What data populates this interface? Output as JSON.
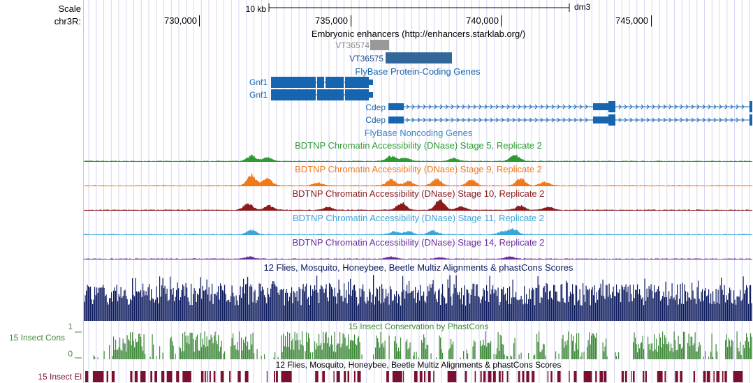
{
  "ruler": {
    "scale_label": "Scale",
    "chrom_label": "chr3R:",
    "scale_bar_label": "10 kb",
    "assembly": "dm3",
    "positions": [
      "730,000",
      "735,000",
      "740,000",
      "745,000"
    ]
  },
  "tracks": {
    "enhancers": {
      "title": "Embryonic enhancers (http://enhancers.starklab.org/)",
      "items": [
        {
          "label": "VT36574",
          "color": "#999999",
          "label_color": "#8a8a8a"
        },
        {
          "label": "VT36575",
          "color": "#336699",
          "label_color": "#1f4e8c"
        }
      ]
    },
    "flybase_coding": {
      "title": "FlyBase Protein-Coding Genes",
      "color": "#1565b0",
      "genes": [
        {
          "label": "Gnf1"
        },
        {
          "label": "Gnf1"
        },
        {
          "label": "Cdep"
        },
        {
          "label": "Cdep"
        }
      ]
    },
    "flybase_noncoding": {
      "title": "FlyBase Noncoding Genes",
      "color": "#3a86c8"
    },
    "dnase": [
      {
        "title": "BDTNP Chromatin Accessibility (DNase) Stage 5, Replicate 2",
        "color": "#2e9a32"
      },
      {
        "title": "BDTNP Chromatin Accessibility (DNase) Stage 9, Replicate 2",
        "color": "#f07a1a"
      },
      {
        "title": "BDTNP Chromatin Accessibility (DNase) Stage 10, Replicate 2",
        "color": "#8b1a1a"
      },
      {
        "title": "BDTNP Chromatin Accessibility (DNase) Stage 11, Replicate 2",
        "color": "#3aa6d8"
      },
      {
        "title": "BDTNP Chromatin Accessibility (DNase) Stage 14, Replicate 2",
        "color": "#6b2d9a"
      }
    ],
    "multiz": {
      "title": "12 Flies, Mosquito, Honeybee, Beetle Multiz Alignments & phastCons Scores",
      "color": "#0c1a5e"
    },
    "phastcons": {
      "title": "15 Insect Conservation by PhastCons",
      "side_label": "15 Insect Cons",
      "scale_max": "1",
      "scale_min": "0",
      "color": "#3f8a3a"
    },
    "elements": {
      "title": "12 Flies, Mosquito, Honeybee, Beetle Multiz Alignments & phastCons Scores",
      "side_label": "15 Insect El",
      "color": "#7a1030"
    }
  }
}
